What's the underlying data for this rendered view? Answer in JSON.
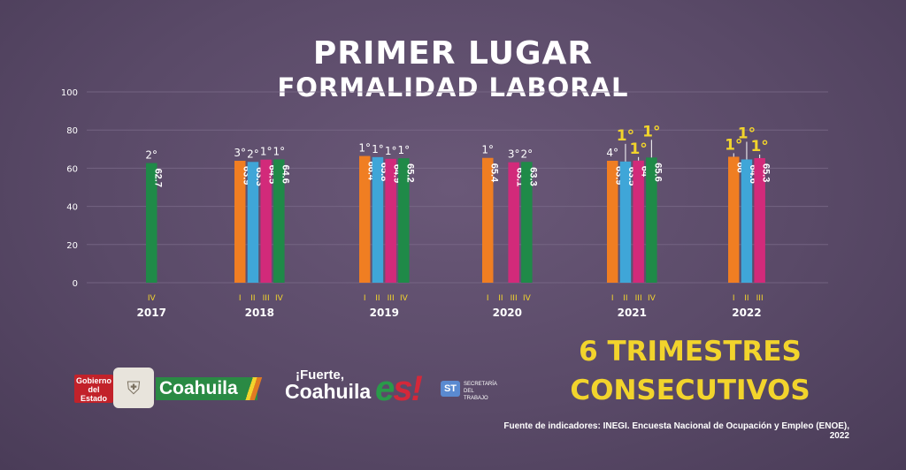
{
  "header": {
    "title_line1": "PRIMER LUGAR",
    "title_line2": "FORMALIDAD LABORAL"
  },
  "chart_data": {
    "type": "bar",
    "ylim": [
      0,
      100
    ],
    "yticks": [
      0,
      20,
      40,
      60,
      80,
      100
    ],
    "grid": true,
    "legend": "none",
    "series_colors": {
      "I": "#f07e22",
      "II": "#3fa6d8",
      "III": "#d22a7a",
      "IV": "#1f8a48"
    },
    "groups": [
      {
        "year": "2017",
        "bars": [
          {
            "q": "IV",
            "value": 62.7,
            "value_label": "62.7",
            "rank": "2°"
          }
        ]
      },
      {
        "year": "2018",
        "bars": [
          {
            "q": "I",
            "value": 63.9,
            "value_label": "63.9",
            "rank": "3°"
          },
          {
            "q": "II",
            "value": 63.3,
            "value_label": "63.3",
            "rank": "2°"
          },
          {
            "q": "III",
            "value": 64.5,
            "value_label": "64.5",
            "rank": "1°"
          },
          {
            "q": "IV",
            "value": 64.6,
            "value_label": "64.6",
            "rank": "1°"
          }
        ]
      },
      {
        "year": "2019",
        "bars": [
          {
            "q": "I",
            "value": 66.4,
            "value_label": "66.4",
            "rank": "1°"
          },
          {
            "q": "II",
            "value": 65.8,
            "value_label": "65.8",
            "rank": "1°"
          },
          {
            "q": "III",
            "value": 64.9,
            "value_label": "64.9",
            "rank": "1°"
          },
          {
            "q": "IV",
            "value": 65.2,
            "value_label": "65.2",
            "rank": "1°"
          }
        ]
      },
      {
        "year": "2020",
        "bars": [
          {
            "q": "I",
            "value": 65.4,
            "value_label": "65.4",
            "rank": "1°"
          },
          {
            "q": "II",
            "value": null,
            "value_label": "",
            "rank": ""
          },
          {
            "q": "III",
            "value": 63.1,
            "value_label": "63.1",
            "rank": "3°"
          },
          {
            "q": "IV",
            "value": 63.3,
            "value_label": "63.3",
            "rank": "2°"
          }
        ]
      },
      {
        "year": "2021",
        "bars": [
          {
            "q": "I",
            "value": 63.9,
            "value_label": "63.9",
            "rank": "4°"
          },
          {
            "q": "II",
            "value": 63.5,
            "value_label": "63.5",
            "rank": "1°",
            "highlight": true
          },
          {
            "q": "III",
            "value": 64,
            "value_label": "64",
            "rank": "1°",
            "highlight": true
          },
          {
            "q": "IV",
            "value": 65.6,
            "value_label": "65.6",
            "rank": "1°",
            "highlight": true
          }
        ]
      },
      {
        "year": "2022",
        "bars": [
          {
            "q": "I",
            "value": 66,
            "value_label": "66",
            "rank": "1°",
            "highlight": true
          },
          {
            "q": "II",
            "value": 64.6,
            "value_label": "64.6",
            "rank": "1°",
            "highlight": true
          },
          {
            "q": "III",
            "value": 65.3,
            "value_label": "65.3",
            "rank": "1°",
            "highlight": true
          }
        ]
      }
    ]
  },
  "callout": {
    "line1": "6 TRIMESTRES",
    "line2": "CONSECUTIVOS"
  },
  "footer": {
    "source": "Fuente de indicadores: INEGI. Encuesta Nacional de Ocupación y Empleo (ENOE), 2022",
    "logo_gobierno": "Gobierno del Estado",
    "logo_coahuila": "Coahuila",
    "logo_fuerte_line1": "¡Fuerte,",
    "logo_fuerte_line2": "Coahuila",
    "logo_es_e": "e",
    "logo_es_s": "s!",
    "logo_st": "ST",
    "logo_st_text": "SECRETARÍA DEL TRABAJO"
  },
  "colors": {
    "background": "#5a4a68",
    "highlight_rank": "#f2d42c",
    "grid": "#7a6a88",
    "text": "#ffffff"
  }
}
